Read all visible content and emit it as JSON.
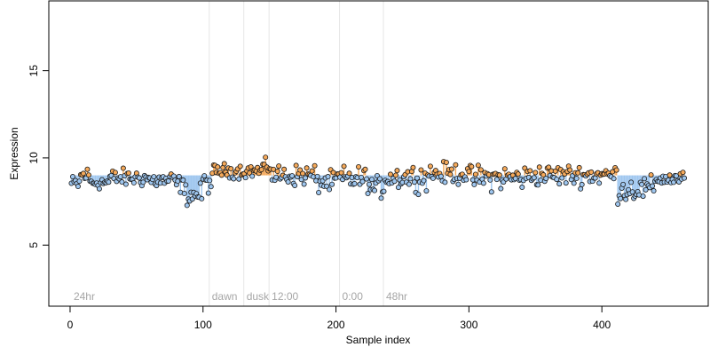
{
  "chart_data": {
    "type": "scatter",
    "title": "",
    "xlabel": "Sample index",
    "ylabel": "Expression",
    "xlim": [
      -16,
      480
    ],
    "ylim": [
      1.5,
      19
    ],
    "x_ticks": [
      0,
      100,
      200,
      300,
      400
    ],
    "y_ticks": [
      5,
      10,
      15
    ],
    "grid": false,
    "baseline": 9.0,
    "colors": {
      "above": "#f5a95a",
      "below": "#9ec6ef",
      "point_edge": "#1a1a1a",
      "region_line": "#e6e6e6",
      "region_text": "#a6a6a6"
    },
    "regions": [
      {
        "label": "24hr",
        "x": 2
      },
      {
        "label": "dawn",
        "x": 106
      },
      {
        "label": "dusk",
        "x": 132
      },
      {
        "label": "12:00",
        "x": 151
      },
      {
        "label": "0:00",
        "x": 204
      },
      {
        "label": "48hr",
        "x": 237
      }
    ],
    "segments": [
      {
        "x0": 1,
        "x1": 8,
        "mean": 8.5,
        "noise": 0.25
      },
      {
        "x0": 8,
        "x1": 15,
        "mean": 9.0,
        "noise": 0.25
      },
      {
        "x0": 15,
        "x1": 30,
        "mean": 8.6,
        "noise": 0.2
      },
      {
        "x0": 30,
        "x1": 60,
        "mean": 8.85,
        "noise": 0.25
      },
      {
        "x0": 60,
        "x1": 80,
        "mean": 8.7,
        "noise": 0.25
      },
      {
        "x0": 80,
        "x1": 86,
        "mean": 8.5,
        "noise": 0.25
      },
      {
        "x0": 86,
        "x1": 100,
        "mean": 7.9,
        "noise": 0.3
      },
      {
        "x0": 100,
        "x1": 108,
        "mean": 8.6,
        "noise": 0.3
      },
      {
        "x0": 108,
        "x1": 145,
        "mean": 9.25,
        "noise": 0.2
      },
      {
        "x0": 145,
        "x1": 152,
        "mean": 9.5,
        "noise": 0.2
      },
      {
        "x0": 152,
        "x1": 165,
        "mean": 9.0,
        "noise": 0.3
      },
      {
        "x0": 165,
        "x1": 185,
        "mean": 9.0,
        "noise": 0.3
      },
      {
        "x0": 185,
        "x1": 200,
        "mean": 8.6,
        "noise": 0.3
      },
      {
        "x0": 200,
        "x1": 225,
        "mean": 8.8,
        "noise": 0.35
      },
      {
        "x0": 225,
        "x1": 237,
        "mean": 8.3,
        "noise": 0.3
      },
      {
        "x0": 237,
        "x1": 270,
        "mean": 8.9,
        "noise": 0.35
      },
      {
        "x0": 270,
        "x1": 300,
        "mean": 9.1,
        "noise": 0.3
      },
      {
        "x0": 300,
        "x1": 345,
        "mean": 8.85,
        "noise": 0.35
      },
      {
        "x0": 345,
        "x1": 412,
        "mean": 9.0,
        "noise": 0.3
      },
      {
        "x0": 412,
        "x1": 440,
        "mean": 8.2,
        "noise": 0.35
      },
      {
        "x0": 440,
        "x1": 462,
        "mean": 8.8,
        "noise": 0.2
      }
    ]
  }
}
